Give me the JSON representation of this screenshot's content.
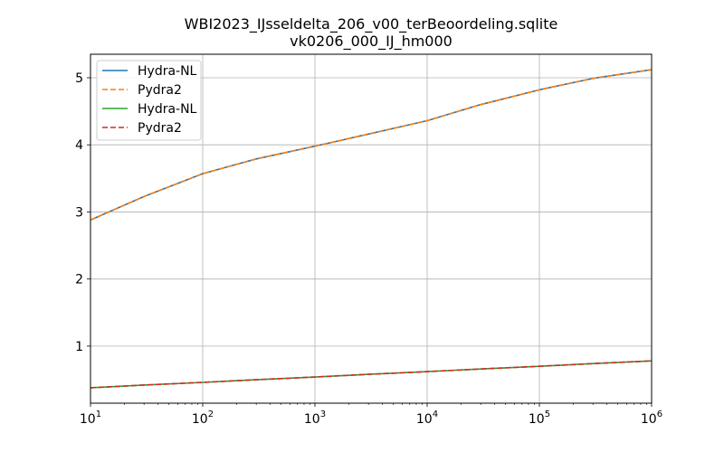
{
  "chart_data": {
    "type": "line",
    "title": "WBI2023_IJsseldelta_206_v00_terBeoordeling.sqlite",
    "subtitle": "vk0206_000_IJ_hm000",
    "xlabel": "",
    "ylabel": "",
    "x_scale": "log",
    "xlim": [
      10,
      1000000
    ],
    "ylim": [
      0.15,
      5.35
    ],
    "grid": true,
    "legend_position": "top-left",
    "x_ticks": [
      {
        "base": "10",
        "exp": "1",
        "value": 10
      },
      {
        "base": "10",
        "exp": "2",
        "value": 100
      },
      {
        "base": "10",
        "exp": "3",
        "value": 1000
      },
      {
        "base": "10",
        "exp": "4",
        "value": 10000
      },
      {
        "base": "10",
        "exp": "5",
        "value": 100000
      },
      {
        "base": "10",
        "exp": "6",
        "value": 1000000
      }
    ],
    "y_ticks": [
      "1",
      "2",
      "3",
      "4",
      "5"
    ],
    "x": [
      10,
      30,
      100,
      300,
      1000,
      3000,
      10000,
      30000,
      100000,
      300000,
      1000000
    ],
    "series": [
      {
        "name": "Hydra-NL",
        "color": "#1f77b4",
        "style": "solid",
        "values": [
          2.88,
          3.23,
          3.57,
          3.79,
          3.98,
          4.16,
          4.36,
          4.6,
          4.82,
          4.99,
          5.12
        ]
      },
      {
        "name": "Pydra2",
        "color": "#ff7f0e",
        "style": "dashed",
        "values": [
          2.88,
          3.23,
          3.57,
          3.79,
          3.98,
          4.16,
          4.36,
          4.6,
          4.82,
          4.99,
          5.12
        ]
      },
      {
        "name": "Hydra-NL",
        "color": "#2ca02c",
        "style": "solid",
        "values": [
          0.38,
          0.42,
          0.46,
          0.5,
          0.54,
          0.58,
          0.62,
          0.66,
          0.7,
          0.74,
          0.78
        ]
      },
      {
        "name": "Pydra2",
        "color": "#d62728",
        "style": "dashed",
        "values": [
          0.38,
          0.42,
          0.46,
          0.5,
          0.54,
          0.58,
          0.62,
          0.66,
          0.7,
          0.74,
          0.78
        ]
      }
    ]
  }
}
